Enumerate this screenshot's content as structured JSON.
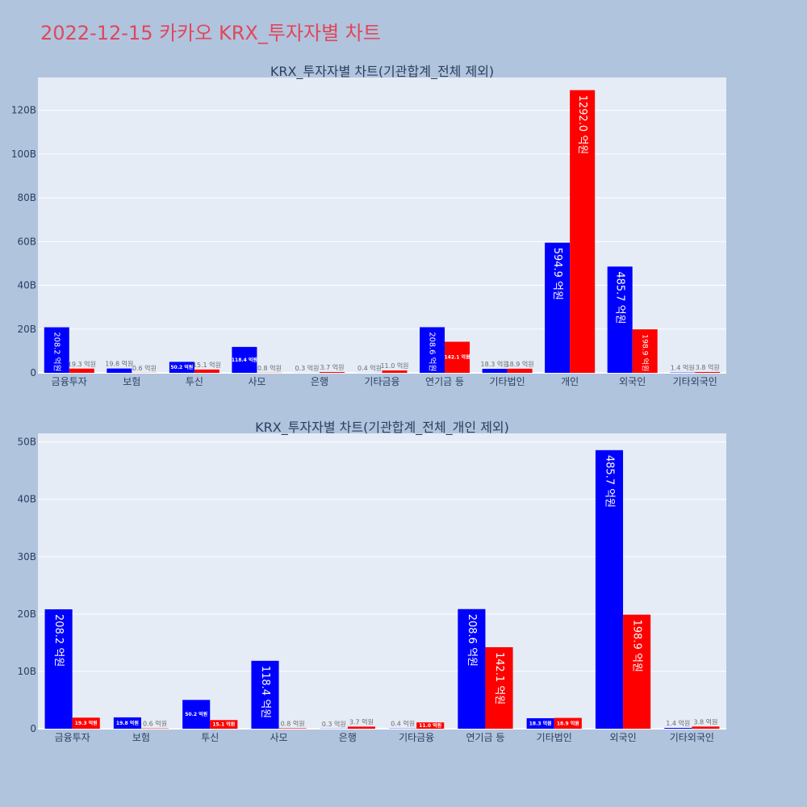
{
  "title": "2022-12-15 카카오 KRX_투자자별 차트",
  "colors": {
    "buy": "#0000ff",
    "sell": "#ff0000",
    "plot_bg": "#e5ecf6",
    "page_bg": "#b0c4de",
    "title": "#e0475a"
  },
  "chart_data": [
    {
      "type": "bar",
      "title": "KRX_투자자별 차트(기관합계_전체 제외)",
      "categories": [
        "금융투자",
        "보험",
        "투신",
        "사모",
        "은행",
        "기타금융",
        "연기금 등",
        "기타법인",
        "개인",
        "외국인",
        "기타외국인"
      ],
      "ylim": [
        0,
        135
      ],
      "yticks": [
        0,
        20,
        40,
        60,
        80,
        100,
        120
      ],
      "ytick_labels": [
        "0",
        "20B",
        "40B",
        "60B",
        "80B",
        "100B",
        "120B"
      ],
      "grid": true,
      "series": [
        {
          "color": "#0000ff",
          "values": [
            20.82,
            1.98,
            5.02,
            11.84,
            0.03,
            0.04,
            20.86,
            1.83,
            59.49,
            48.57,
            0.14
          ],
          "labels": [
            "208.2 억원",
            "19.8 억원",
            "50.2 억원",
            "118.4 억원",
            "0.3 억원",
            "0.4 억원",
            "208.6 억원",
            "18.3 억원",
            "594.9 억원",
            "485.7 억원",
            "1.4 억원"
          ]
        },
        {
          "color": "#ff0000",
          "values": [
            1.93,
            0.06,
            1.51,
            0.08,
            0.37,
            1.1,
            14.21,
            1.89,
            129.2,
            19.89,
            0.38
          ],
          "labels": [
            "19.3 억원",
            "0.6 억원",
            "15.1 억원",
            "0.8 억원",
            "3.7 억원",
            "11.0 억원",
            "142.1 억원",
            "18.9 억원",
            "1292.0 억원",
            "198.9 억원",
            "3.8 억원"
          ]
        }
      ]
    },
    {
      "type": "bar",
      "title": "KRX_투자자별 차트(기관합계_전체_개인 제외)",
      "categories": [
        "금융투자",
        "보험",
        "투신",
        "사모",
        "은행",
        "기타금융",
        "연기금 등",
        "기타법인",
        "외국인",
        "기타외국인"
      ],
      "ylim": [
        0,
        51.5
      ],
      "yticks": [
        0,
        10,
        20,
        30,
        40,
        50
      ],
      "ytick_labels": [
        "0",
        "10B",
        "20B",
        "30B",
        "40B",
        "50B"
      ],
      "grid": true,
      "series": [
        {
          "color": "#0000ff",
          "values": [
            20.82,
            1.98,
            5.02,
            11.84,
            0.03,
            0.04,
            20.86,
            1.83,
            48.57,
            0.14
          ],
          "labels": [
            "208.2 억원",
            "19.8 억원",
            "50.2 억원",
            "118.4 억원",
            "0.3 억원",
            "0.4 억원",
            "208.6 억원",
            "18.3 억원",
            "485.7 억원",
            "1.4 억원"
          ]
        },
        {
          "color": "#ff0000",
          "values": [
            1.93,
            0.06,
            1.51,
            0.08,
            0.37,
            1.1,
            14.21,
            1.89,
            19.89,
            0.38
          ],
          "labels": [
            "19.3 억원",
            "0.6 억원",
            "15.1 억원",
            "0.8 억원",
            "3.7 억원",
            "11.0 억원",
            "142.1 억원",
            "18.9 억원",
            "198.9 억원",
            "3.8 억원"
          ]
        }
      ]
    }
  ]
}
